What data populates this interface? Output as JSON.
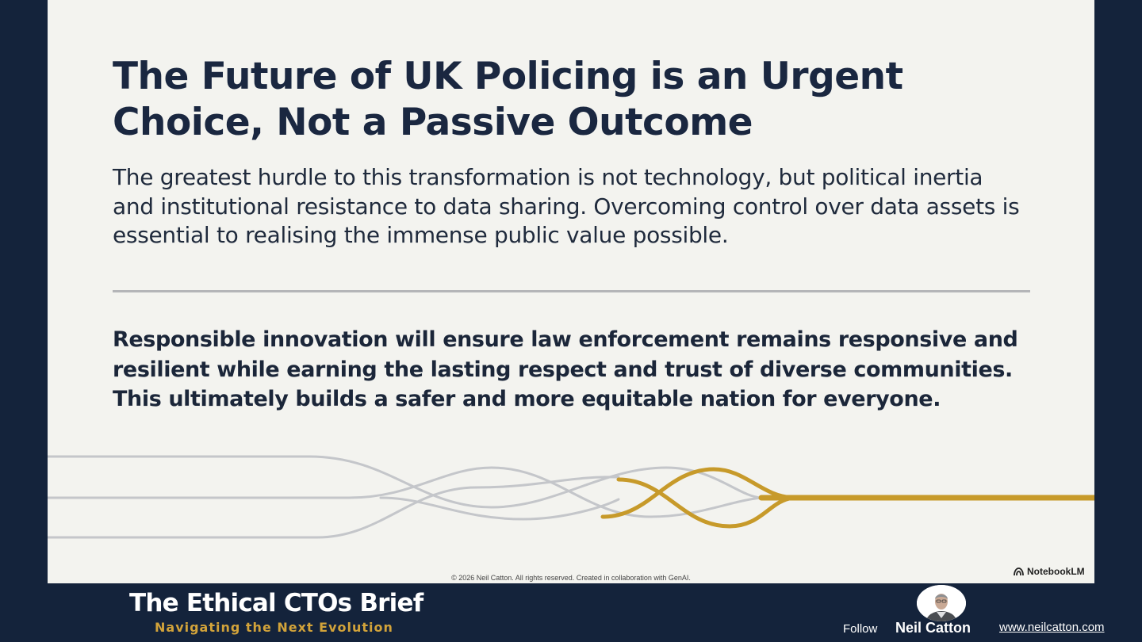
{
  "slide": {
    "title": "The Future of UK Policing is an Urgent Choice, Not a Passive Outcome",
    "subtitle": "The greatest hurdle to this transformation is not technology, but political inertia and institutional resistance to data sharing. Overcoming control over data assets is essential to realising the immense public value possible.",
    "emphasis": "Responsible innovation will ensure law enforcement remains responsive and resilient while earning the lasting respect and trust of diverse communities. This ultimately builds a safer and more equitable nation for everyone.",
    "copyright": "© 2026 Neil Catton. All rights reserved. Created in collaboration with GenAI.",
    "watermark": "NotebookLM",
    "watermark_icon": "notebooklm-logo-icon"
  },
  "footer": {
    "brand_title": "The Ethical CTOs Brief",
    "brand_subtitle": "Navigating the Next Evolution",
    "follow_label": "Follow",
    "author_name": "Neil Catton",
    "website": "www.neilcatton.com",
    "avatar_icon": "author-photo"
  },
  "colors": {
    "background": "#14233b",
    "slide_background": "#f3f3ef",
    "title_text": "#1a2740",
    "accent_gold": "#c79a2a",
    "brand_subtitle": "#d2a33a",
    "thread_grey": "#c4c6ca"
  }
}
